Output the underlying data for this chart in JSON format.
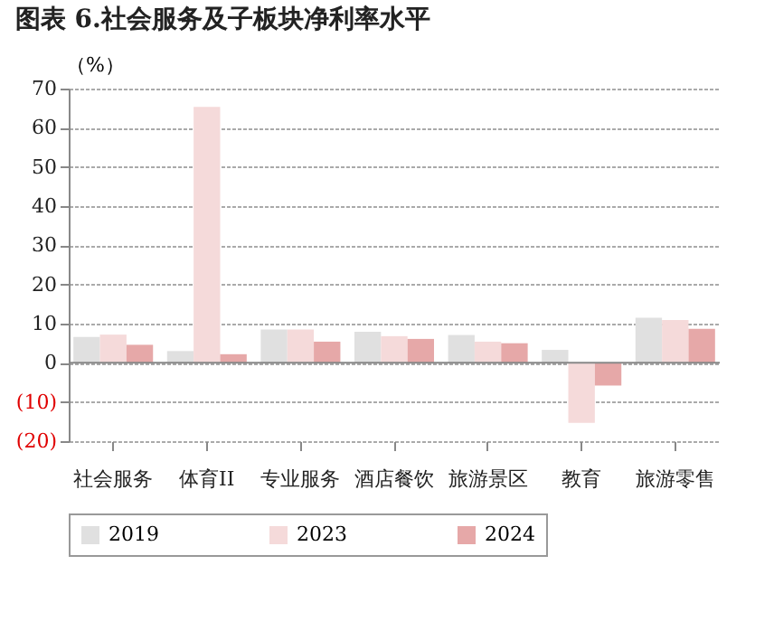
{
  "chart_data": {
    "type": "bar",
    "title": "图表 6.社会服务及子板块净利率水平",
    "ylabel": "（%）",
    "categories": [
      "社会服务",
      "体育II",
      "专业服务",
      "酒店餐饮",
      "旅游景区",
      "教育",
      "旅游零售"
    ],
    "series": [
      {
        "name": "2019",
        "color": "#e0e0e0",
        "values": [
          6.6,
          3.0,
          8.5,
          7.9,
          7.1,
          3.3,
          11.5
        ]
      },
      {
        "name": "2023",
        "color": "#f5dada",
        "values": [
          7.2,
          65.3,
          8.5,
          6.8,
          5.4,
          -15.3,
          10.9
        ]
      },
      {
        "name": "2024",
        "color": "#e6a8a8",
        "values": [
          4.6,
          2.2,
          5.4,
          6.1,
          5.0,
          -5.8,
          8.7
        ]
      }
    ],
    "ylim": [
      -20,
      70
    ],
    "yticks": [
      {
        "value": -20,
        "label": "(20)"
      },
      {
        "value": -10,
        "label": "(10)"
      },
      0,
      10,
      20,
      30,
      40,
      50,
      60,
      70
    ],
    "grid": "y",
    "legend": "bottom"
  }
}
